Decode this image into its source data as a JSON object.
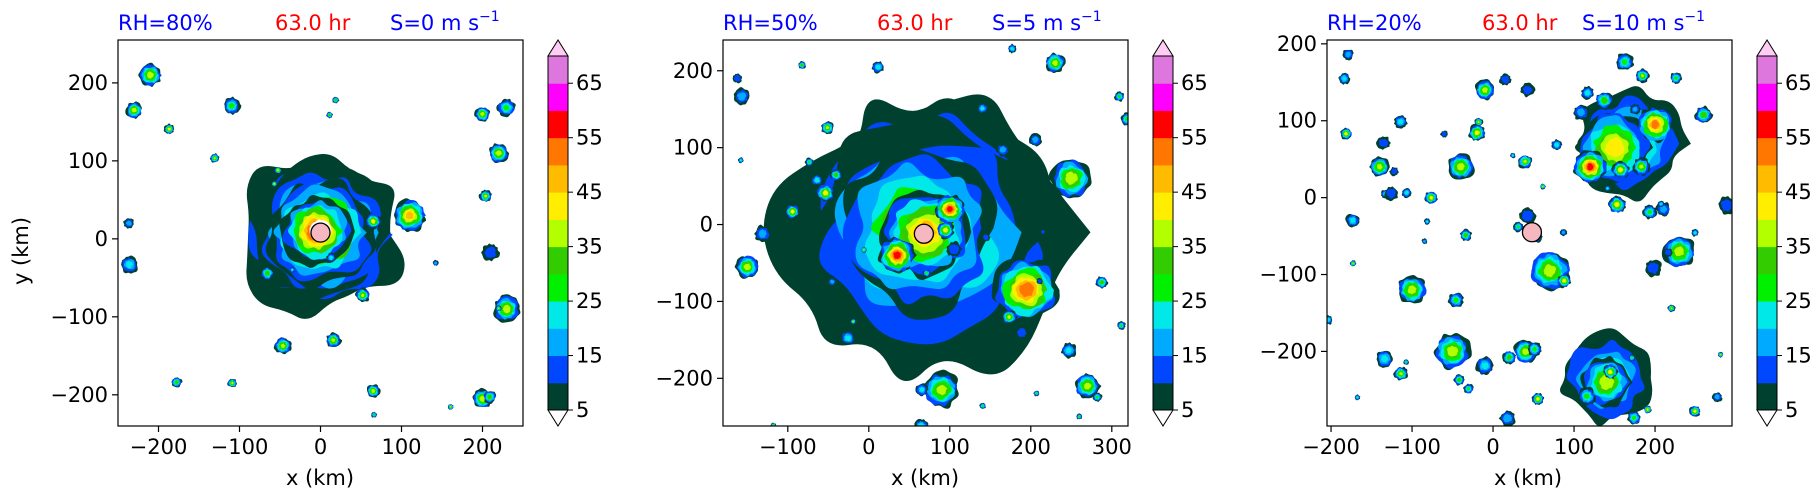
{
  "chart_data": [
    {
      "type": "heatmap",
      "header": {
        "rh": "RH=80%",
        "time": "63.0 hr",
        "shear": "S=0 m s",
        "shear_exp": "−1"
      },
      "xlabel": "x (km)",
      "ylabel": "y (km)",
      "xlim": [
        -250,
        250
      ],
      "ylim": [
        -240,
        255
      ],
      "xticks": [
        {
          "v": -200,
          "t": "−200"
        },
        {
          "v": -100,
          "t": "−100"
        },
        {
          "v": 0,
          "t": "0"
        },
        {
          "v": 100,
          "t": "100"
        },
        {
          "v": 200,
          "t": "200"
        }
      ],
      "yticks": [
        {
          "v": -200,
          "t": "−200"
        },
        {
          "v": -100,
          "t": "−100"
        },
        {
          "v": 0,
          "t": "0"
        },
        {
          "v": 100,
          "t": "100"
        },
        {
          "v": 200,
          "t": "200"
        }
      ],
      "center": {
        "x": 0,
        "y": 8
      },
      "features": [
        {
          "x": 0,
          "y": 5,
          "r": 100,
          "level": 2
        },
        {
          "x": 0,
          "y": 8,
          "r": 85,
          "level": 5
        },
        {
          "x": 0,
          "y": 8,
          "r": 65,
          "level": 9
        },
        {
          "x": -5,
          "y": 10,
          "r": 42,
          "level": 10
        },
        {
          "x": 0,
          "y": 10,
          "r": 14,
          "level": 0
        },
        {
          "x": 110,
          "y": 30,
          "r": 20,
          "level": 8
        },
        {
          "x": 220,
          "y": 110,
          "r": 12,
          "level": 6
        },
        {
          "x": 230,
          "y": -90,
          "r": 16,
          "level": 6
        },
        {
          "x": 200,
          "y": 160,
          "r": 9,
          "level": 6
        },
        {
          "x": -210,
          "y": 210,
          "r": 14,
          "level": 6
        },
        {
          "x": -230,
          "y": 165,
          "r": 10,
          "level": 6
        },
        {
          "x": 200,
          "y": -205,
          "r": 12,
          "level": 6
        },
        {
          "x": 65,
          "y": -195,
          "r": 8,
          "level": 6
        }
      ]
    },
    {
      "type": "heatmap",
      "header": {
        "rh": "RH=50%",
        "time": "63.0 hr",
        "shear": "S=5 m s",
        "shear_exp": "−1"
      },
      "xlabel": "x (km)",
      "ylabel": "",
      "xlim": [
        -180,
        320
      ],
      "ylim": [
        -262,
        240
      ],
      "xticks": [
        {
          "v": -100,
          "t": "−100"
        },
        {
          "v": 0,
          "t": "0"
        },
        {
          "v": 100,
          "t": "100"
        },
        {
          "v": 200,
          "t": "200"
        },
        {
          "v": 300,
          "t": "300"
        }
      ],
      "yticks": [
        {
          "v": -200,
          "t": "−200"
        },
        {
          "v": -100,
          "t": "−100"
        },
        {
          "v": 0,
          "t": "0"
        },
        {
          "v": 100,
          "t": "100"
        },
        {
          "v": 200,
          "t": "200"
        }
      ],
      "center": {
        "x": 68,
        "y": -12
      },
      "features": [
        {
          "x": 70,
          "y": -10,
          "r": 175,
          "level": 1
        },
        {
          "x": 75,
          "y": -5,
          "r": 160,
          "level": 3
        },
        {
          "x": 70,
          "y": -10,
          "r": 140,
          "level": 5
        },
        {
          "x": 60,
          "y": -5,
          "r": 100,
          "level": 6
        },
        {
          "x": 70,
          "y": -10,
          "r": 55,
          "level": 8
        },
        {
          "x": 195,
          "y": -85,
          "r": 40,
          "level": 9
        },
        {
          "x": 35,
          "y": -40,
          "r": 22,
          "level": 10
        },
        {
          "x": 100,
          "y": 20,
          "r": 18,
          "level": 10
        },
        {
          "x": 250,
          "y": 60,
          "r": 25,
          "level": 6
        },
        {
          "x": 90,
          "y": -215,
          "r": 22,
          "level": 6
        },
        {
          "x": 270,
          "y": -210,
          "r": 15,
          "level": 6
        },
        {
          "x": 230,
          "y": 210,
          "r": 12,
          "level": 6
        },
        {
          "x": -150,
          "y": -55,
          "r": 14,
          "level": 6
        }
      ]
    },
    {
      "type": "heatmap",
      "header": {
        "rh": "RH=20%",
        "time": "63.0 hr",
        "shear": "S=10 m s",
        "shear_exp": "−1"
      },
      "xlabel": "x (km)",
      "ylabel": "",
      "xlim": [
        -205,
        295
      ],
      "ylim": [
        -297,
        205
      ],
      "xticks": [
        {
          "v": -200,
          "t": "−200"
        },
        {
          "v": -100,
          "t": "−100"
        },
        {
          "v": 0,
          "t": "0"
        },
        {
          "v": 100,
          "t": "100"
        },
        {
          "v": 200,
          "t": "200"
        }
      ],
      "yticks": [
        {
          "v": -200,
          "t": "−200"
        },
        {
          "v": -100,
          "t": "−100"
        },
        {
          "v": 0,
          "t": "0"
        },
        {
          "v": 100,
          "t": "100"
        },
        {
          "v": 200,
          "t": "200"
        }
      ],
      "center": {
        "x": 48,
        "y": -45
      },
      "features": [
        {
          "x": 170,
          "y": 70,
          "r": 65,
          "level": 3
        },
        {
          "x": 150,
          "y": 65,
          "r": 45,
          "level": 7
        },
        {
          "x": 200,
          "y": 95,
          "r": 22,
          "level": 9
        },
        {
          "x": 120,
          "y": 40,
          "r": 20,
          "level": 10
        },
        {
          "x": 140,
          "y": -235,
          "r": 55,
          "level": 3
        },
        {
          "x": 140,
          "y": -240,
          "r": 30,
          "level": 6
        },
        {
          "x": 70,
          "y": -95,
          "r": 25,
          "level": 6
        },
        {
          "x": 230,
          "y": -70,
          "r": 20,
          "level": 6
        },
        {
          "x": -100,
          "y": -120,
          "r": 18,
          "level": 6
        },
        {
          "x": -50,
          "y": -200,
          "r": 22,
          "level": 6
        },
        {
          "x": -40,
          "y": 40,
          "r": 16,
          "level": 6
        },
        {
          "x": -140,
          "y": 40,
          "r": 12,
          "level": 6
        },
        {
          "x": -10,
          "y": 140,
          "r": 12,
          "level": 6
        },
        {
          "x": 40,
          "y": -200,
          "r": 14,
          "level": 6
        }
      ]
    }
  ],
  "colorbar": {
    "levels": [
      5,
      10,
      15,
      20,
      25,
      30,
      35,
      40,
      45,
      50,
      55,
      60,
      65,
      70
    ],
    "colors": [
      "#00402e",
      "#0047ff",
      "#00aaff",
      "#00e8e8",
      "#00f000",
      "#33cc00",
      "#b3ff00",
      "#ffee00",
      "#ffbb00",
      "#ff7700",
      "#ff0000",
      "#ff00ff",
      "#dd77dd",
      "#ffccf4"
    ],
    "tick_labels": [
      "5",
      "15",
      "25",
      "35",
      "45",
      "55",
      "65"
    ]
  },
  "colors": {
    "rh_text": "#0000ff",
    "time_text": "#ff0000",
    "shear_text": "#0000ff",
    "center_marker": "#f5b8c0"
  }
}
